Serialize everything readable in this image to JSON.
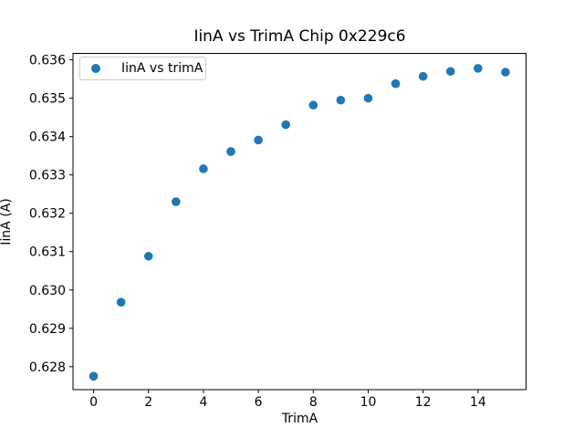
{
  "chart_data": {
    "type": "scatter",
    "title": "IinA vs TrimA Chip 0x229c6",
    "xlabel": "TrimA",
    "ylabel": "IinA (A)",
    "legend": {
      "label": "IinA vs trimA",
      "position": "upper left"
    },
    "marker_color": "#1f77b4",
    "background_color": "#ffffff",
    "grid": false,
    "x": [
      0,
      1,
      2,
      3,
      4,
      5,
      6,
      7,
      8,
      9,
      10,
      11,
      12,
      13,
      14,
      15
    ],
    "y": [
      0.62775,
      0.62968,
      0.63088,
      0.6323,
      0.63316,
      0.63361,
      0.63391,
      0.63431,
      0.63482,
      0.63495,
      0.635,
      0.63538,
      0.63557,
      0.6357,
      0.63578,
      0.63568
    ],
    "xlim": [
      -0.75,
      15.75
    ],
    "ylim": [
      0.6274,
      0.63617
    ],
    "xticks": [
      0,
      2,
      4,
      6,
      8,
      10,
      12,
      14
    ],
    "yticks": [
      0.628,
      0.629,
      0.63,
      0.631,
      0.632,
      0.633,
      0.634,
      0.635,
      0.636
    ],
    "ytick_decimals": 3
  }
}
